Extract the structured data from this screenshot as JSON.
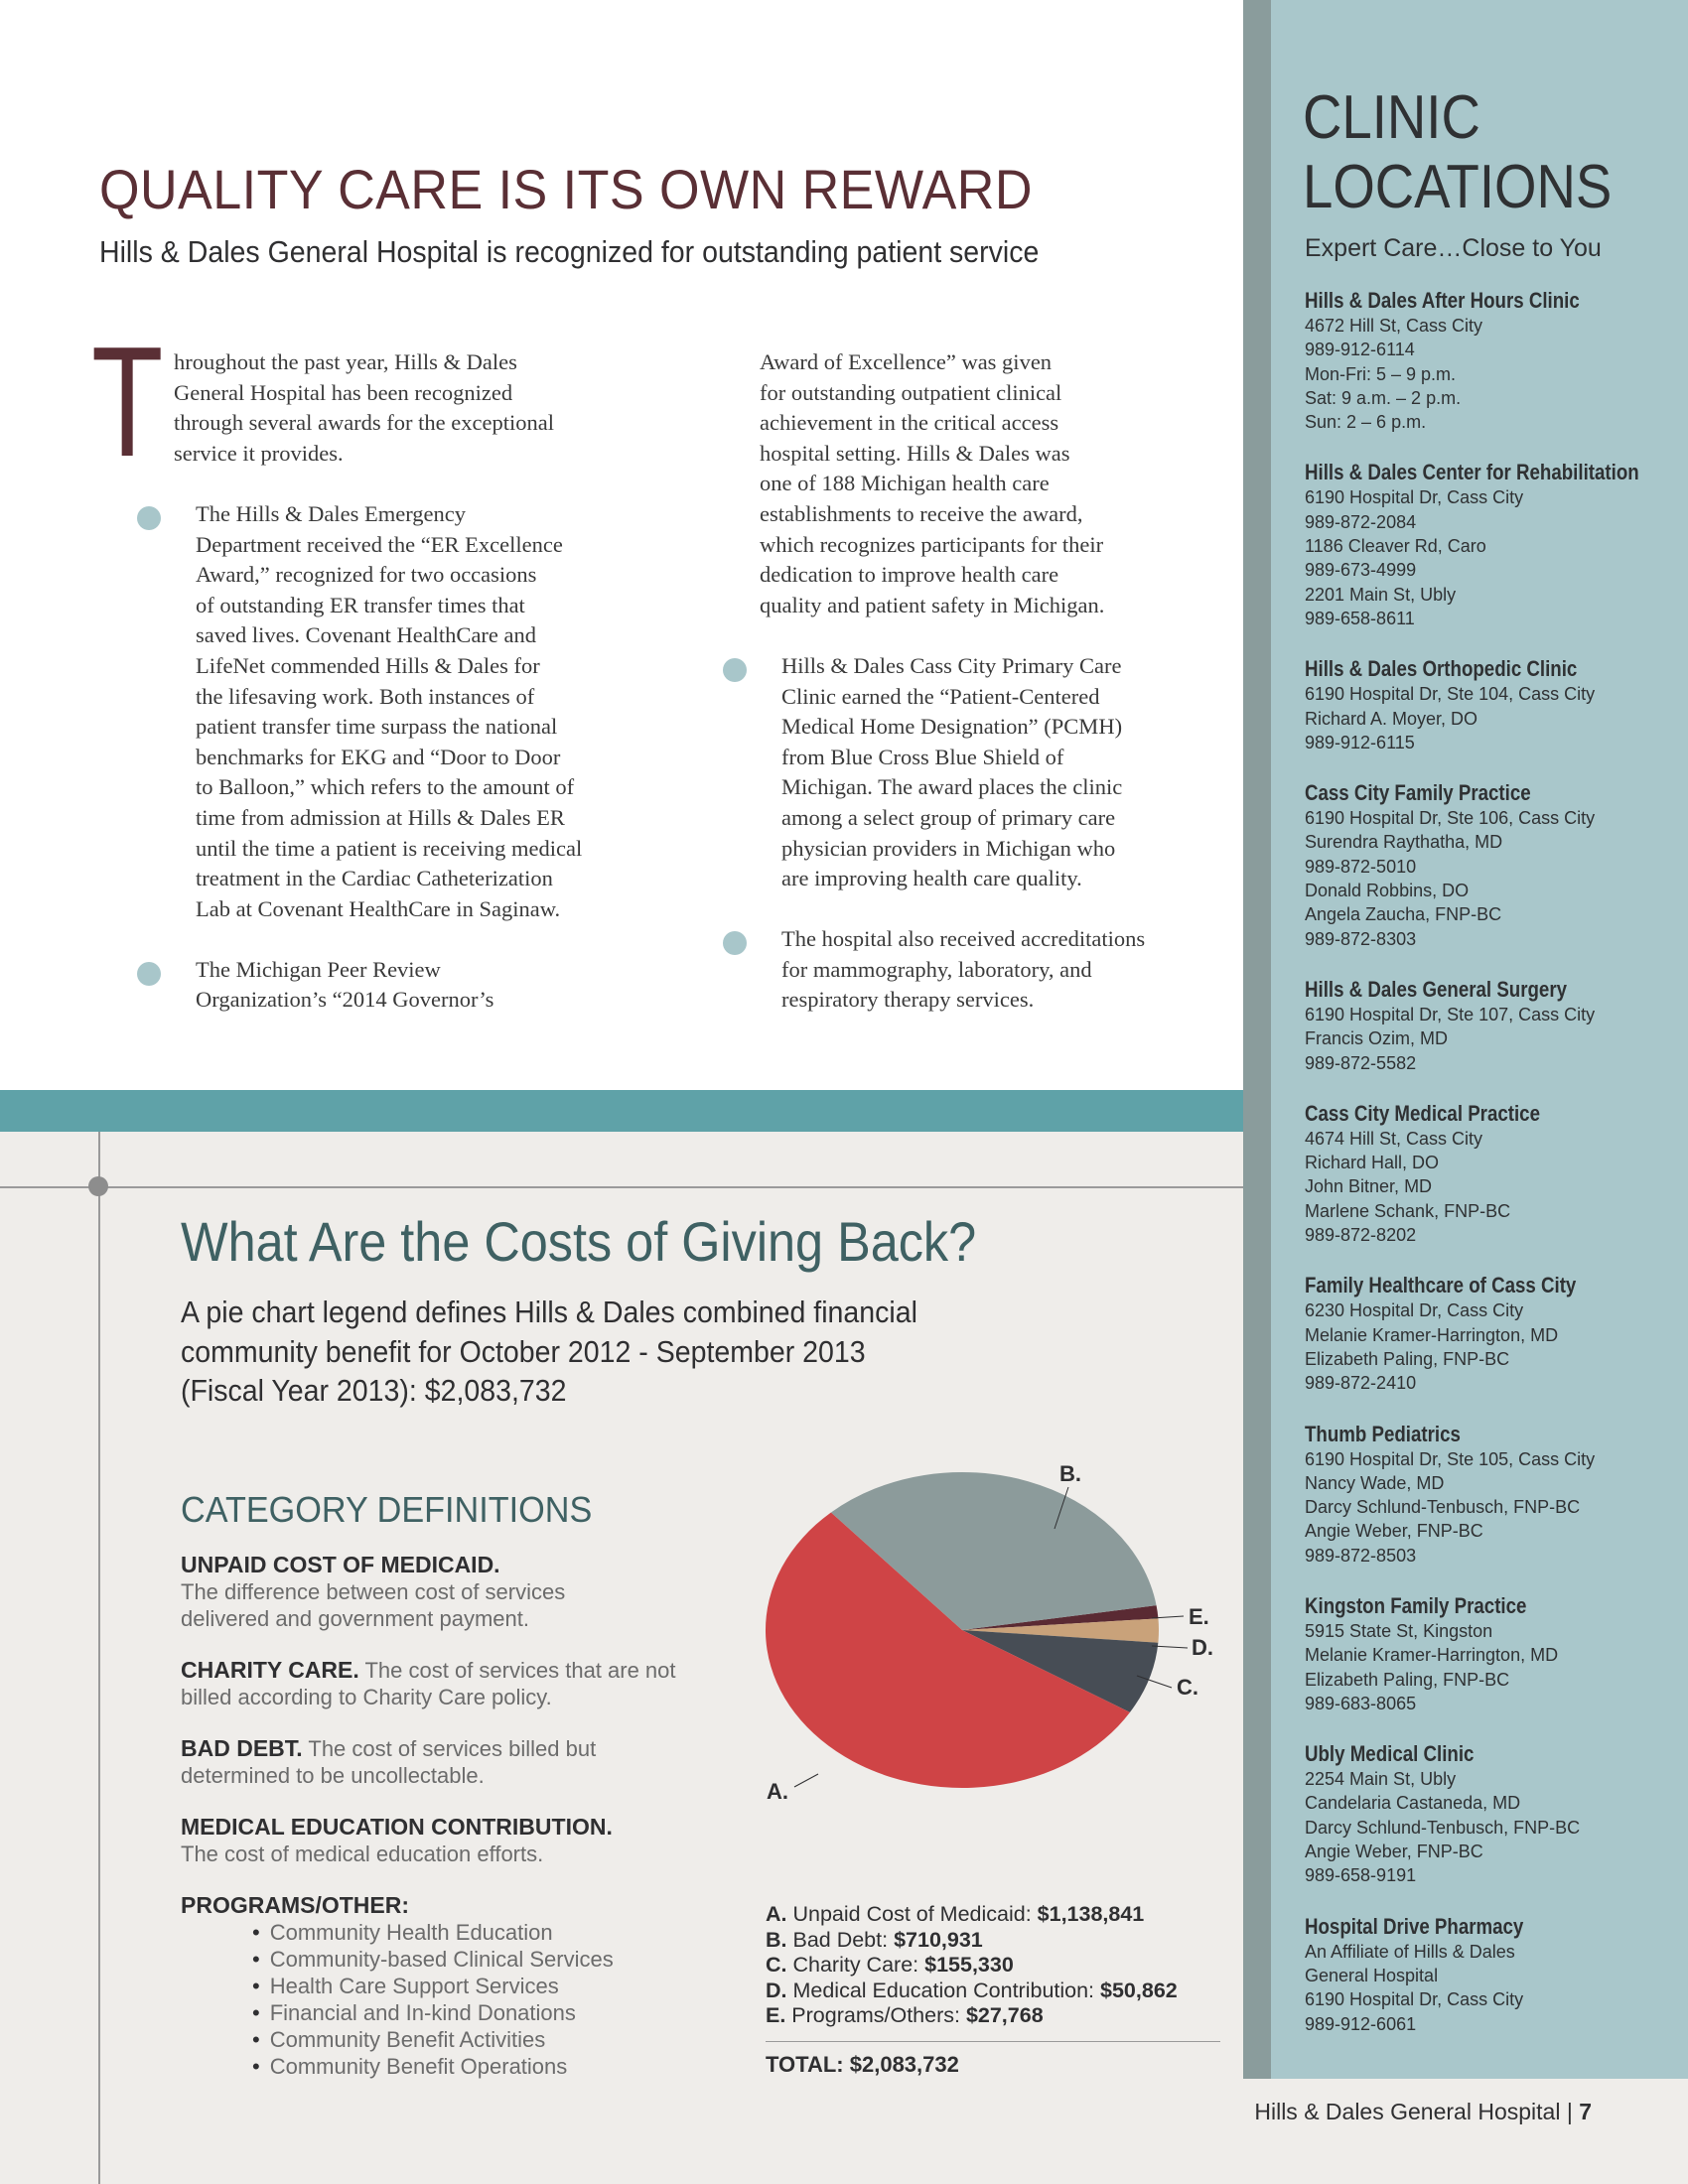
{
  "article": {
    "title": "QUALITY CARE IS ITS OWN REWARD",
    "subtitle": "Hills & Dales General Hospital is recognized for outstanding patient service",
    "drop_cap": "T",
    "columns": [
      [
        {
          "type": "intro",
          "lines": [
            "hroughout the past year, Hills & Dales",
            "General Hospital has been recognized",
            "through several awards for the exceptional",
            "service it provides."
          ]
        },
        {
          "type": "bullet",
          "lines": [
            "The Hills & Dales Emergency",
            "Department received the “ER Excellence",
            "Award,” recognized for two occasions",
            "of outstanding ER transfer times that",
            "saved lives. Covenant HealthCare and",
            "LifeNet commended Hills & Dales for",
            "the lifesaving work. Both instances of",
            "patient transfer time surpass the national",
            "benchmarks for EKG and “Door to Door",
            "to Balloon,” which refers to the amount of",
            "time from admission at Hills & Dales ER",
            "until the time a patient is receiving medical",
            "treatment in the Cardiac Catheterization",
            "Lab at Covenant HealthCare in Saginaw."
          ]
        },
        {
          "type": "bullet",
          "lines": [
            "The Michigan Peer Review",
            "Organization’s “2014 Governor’s"
          ]
        }
      ],
      [
        {
          "type": "cont",
          "lines": [
            "Award of Excellence” was given",
            "for outstanding outpatient clinical",
            "achievement in the critical access",
            "hospital setting. Hills & Dales was",
            "one of 188 Michigan health care",
            "establishments to receive the award,",
            "which recognizes participants for their",
            "dedication to improve health care",
            "quality and patient safety in Michigan."
          ]
        },
        {
          "type": "bullet",
          "lines": [
            "Hills & Dales Cass City Primary Care",
            "Clinic earned the “Patient-Centered",
            "Medical Home Designation” (PCMH)",
            "from Blue Cross Blue Shield of",
            "Michigan. The award places the clinic",
            "among a select group of primary care",
            "physician providers in Michigan who",
            "are improving health care quality."
          ]
        },
        {
          "type": "bullet",
          "lines": [
            "The hospital also received accreditations",
            "for mammography, laboratory, and",
            "respiratory therapy services."
          ]
        }
      ]
    ]
  },
  "costs": {
    "heading": "What Are the Costs of Giving Back?",
    "intro_lines": [
      "A pie chart legend defines Hills & Dales combined financial",
      "community benefit for October 2012 - September 2013",
      "(Fiscal Year 2013): $2,083,732"
    ],
    "category_heading": "CATEGORY DEFINITIONS",
    "definitions": [
      {
        "term": "UNPAID COST OF MEDICAID.",
        "inline": "",
        "lines": [
          "The difference between cost of services",
          "delivered and government payment."
        ]
      },
      {
        "term": "CHARITY CARE.",
        "inline": " The cost of services that are not",
        "lines": [
          "billed according to Charity Care policy."
        ]
      },
      {
        "term": "BAD DEBT.",
        "inline": " The cost of services billed but",
        "lines": [
          "determined to be uncollectable."
        ]
      },
      {
        "term": "MEDICAL EDUCATION CONTRIBUTION.",
        "inline": "",
        "lines": [
          "The cost of medical education efforts."
        ]
      }
    ],
    "programs_heading": "PROGRAMS/OTHER:",
    "programs": [
      "Community Health Education",
      "Community-based Clinical Services",
      "Health Care Support Services",
      "Financial and In-kind Donations",
      "Community Benefit Activities",
      "Community Benefit Operations"
    ]
  },
  "chart_data": {
    "type": "pie",
    "title": "",
    "slices": [
      {
        "key": "A.",
        "label": "Unpaid Cost of Medicaid:",
        "amount": "$1,138,841",
        "value": 1138841,
        "color": "#cf4446"
      },
      {
        "key": "B.",
        "label": "Bad Debt:",
        "amount": "$710,931",
        "value": 710931,
        "color": "#8c9b9b"
      },
      {
        "key": "C.",
        "label": "Charity Care:",
        "amount": "$155,330",
        "value": 155330,
        "color": "#474d55"
      },
      {
        "key": "D.",
        "label": "Medical Education Contribution:",
        "amount": "$50,862",
        "value": 50862,
        "color": "#c9a27a"
      },
      {
        "key": "E.",
        "label": "Programs/Others:",
        "amount": "$27,768",
        "value": 27768,
        "color": "#5a2a33"
      }
    ],
    "total_label": "TOTAL:",
    "total_amount": "$2,083,732",
    "total": 2083732
  },
  "sidebar": {
    "title_lines": [
      "CLINIC",
      "LOCATIONS"
    ],
    "tagline": "Expert Care…Close to You",
    "clinics": [
      {
        "name": "Hills & Dales After Hours Clinic",
        "lines": [
          "4672 Hill St, Cass City",
          "989-912-6114",
          "Mon-Fri: 5 – 9 p.m.",
          "Sat: 9 a.m. – 2 p.m.",
          "Sun: 2 – 6 p.m."
        ]
      },
      {
        "name": "Hills & Dales Center for Rehabilitation",
        "lines": [
          "6190 Hospital Dr, Cass City",
          "989-872-2084",
          "1186 Cleaver Rd, Caro",
          "989-673-4999",
          "2201 Main St, Ubly",
          "989-658-8611"
        ]
      },
      {
        "name": "Hills & Dales Orthopedic Clinic",
        "lines": [
          "6190 Hospital Dr, Ste 104, Cass City",
          "Richard A. Moyer, DO",
          "989-912-6115"
        ]
      },
      {
        "name": "Cass City Family Practice",
        "lines": [
          "6190 Hospital Dr, Ste 106, Cass City",
          "Surendra Raythatha, MD",
          "989-872-5010",
          "Donald Robbins, DO",
          "Angela Zaucha, FNP-BC",
          "989-872-8303"
        ]
      },
      {
        "name": "Hills & Dales General Surgery",
        "lines": [
          "6190 Hospital Dr, Ste 107, Cass City",
          "Francis Ozim, MD",
          "989-872-5582"
        ]
      },
      {
        "name": "Cass City Medical Practice",
        "lines": [
          "4674 Hill St, Cass City",
          "Richard Hall, DO",
          "John Bitner, MD",
          "Marlene Schank, FNP-BC",
          "989-872-8202"
        ]
      },
      {
        "name": "Family Healthcare of Cass City",
        "lines": [
          "6230 Hospital Dr, Cass City",
          "Melanie Kramer-Harrington, MD",
          "Elizabeth Paling, FNP-BC",
          "989-872-2410"
        ]
      },
      {
        "name": "Thumb Pediatrics",
        "lines": [
          "6190 Hospital Dr, Ste 105, Cass City",
          "Nancy Wade, MD",
          "Darcy Schlund-Tenbusch, FNP-BC",
          "Angie Weber, FNP-BC",
          "989-872-8503"
        ]
      },
      {
        "name": "Kingston Family Practice",
        "lines": [
          "5915 State St, Kingston",
          "Melanie Kramer-Harrington, MD",
          "Elizabeth Paling, FNP-BC",
          "989-683-8065"
        ]
      },
      {
        "name": "Ubly Medical Clinic",
        "lines": [
          "2254 Main St, Ubly",
          "Candelaria Castaneda, MD",
          "Darcy Schlund-Tenbusch, FNP-BC",
          "Angie Weber, FNP-BC",
          "989-658-9191"
        ]
      },
      {
        "name": "Hospital Drive Pharmacy",
        "lines": [
          "An Affiliate of Hills & Dales",
          "General Hospital",
          "6190 Hospital Dr, Cass City",
          "989-912-6061"
        ]
      }
    ]
  },
  "footer": {
    "text": "Hills & Dales General Hospital",
    "separator": "|",
    "page": "7"
  }
}
